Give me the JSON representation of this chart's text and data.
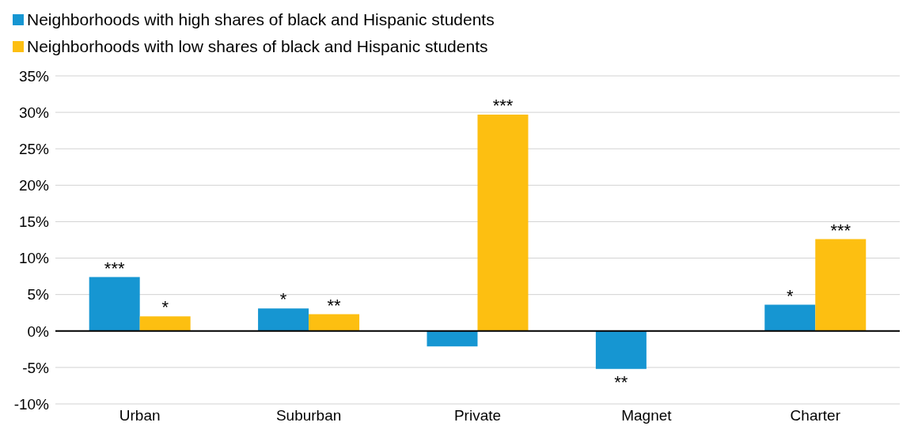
{
  "chart_data": {
    "type": "bar",
    "categories": [
      "Urban",
      "Suburban",
      "Private",
      "Magnet",
      "Charter"
    ],
    "series": [
      {
        "name": "Neighborhoods with high shares of black and Hispanic students",
        "color": "#1696d2",
        "values": [
          7.4,
          3.1,
          -2.1,
          -5.2,
          3.6
        ],
        "value_labels": [
          "***",
          "*",
          null,
          "**",
          "*"
        ]
      },
      {
        "name": "Neighborhoods with low shares of black and Hispanic students",
        "color": "#fdbf11",
        "values": [
          2.0,
          2.3,
          29.7,
          null,
          12.6
        ],
        "value_labels": [
          "*",
          "**",
          "***",
          null,
          "***"
        ]
      }
    ],
    "ylim": [
      -10,
      35
    ],
    "yticks": [
      {
        "value": -10,
        "label": "-10%"
      },
      {
        "value": -5,
        "label": "-5%"
      },
      {
        "value": 0,
        "label": "0%"
      },
      {
        "value": 5,
        "label": "5%"
      },
      {
        "value": 10,
        "label": "10%"
      },
      {
        "value": 15,
        "label": "15%"
      },
      {
        "value": 20,
        "label": "20%"
      },
      {
        "value": 25,
        "label": "25%"
      },
      {
        "value": 30,
        "label": "30%"
      },
      {
        "value": 35,
        "label": "35%"
      }
    ],
    "grid": "y",
    "legend": "top left"
  }
}
